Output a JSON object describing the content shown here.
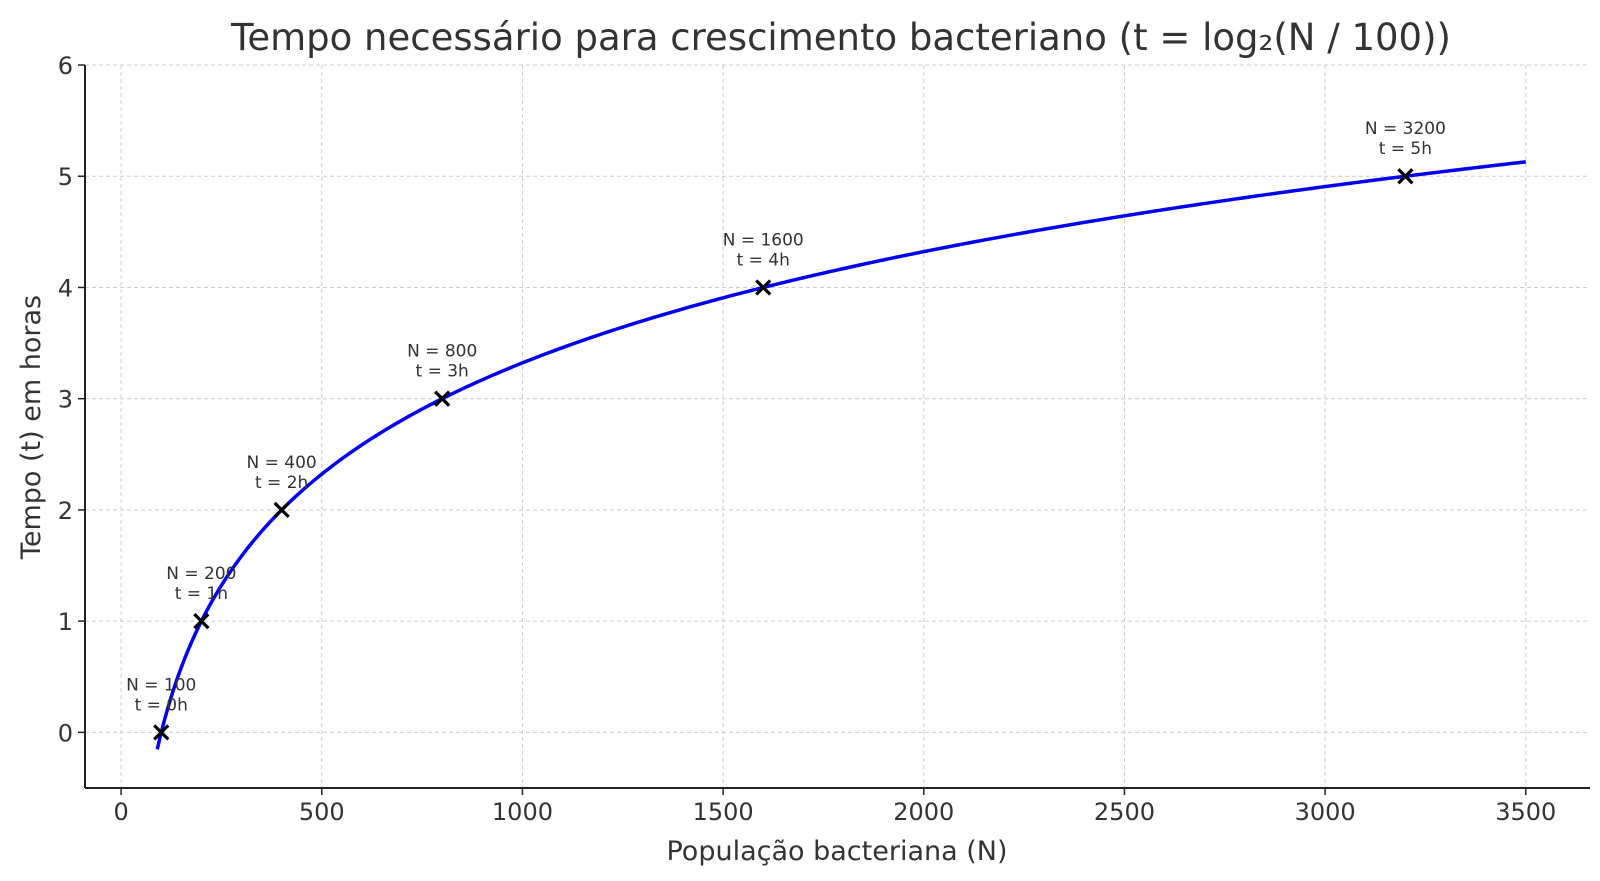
{
  "chart_data": {
    "type": "line",
    "title": "Tempo necessário para crescimento bacteriano (t = log₂(N / 100))",
    "xlabel": "População bacteriana (N)",
    "ylabel": "Tempo (t) em horas",
    "xlim": [
      -90,
      3660
    ],
    "ylim": [
      -0.5,
      6
    ],
    "xticks": [
      0,
      500,
      1000,
      1500,
      2000,
      2500,
      3000,
      3500
    ],
    "yticks": [
      0,
      1,
      2,
      3,
      4,
      5,
      6
    ],
    "grid": true,
    "curve": {
      "formula": "t = log2(N / 100)",
      "x_range": [
        90,
        3500
      ],
      "color": "#0000ee"
    },
    "points": [
      {
        "x": 100,
        "y": 0,
        "label_n": "N = 100",
        "label_t": "t = 0h"
      },
      {
        "x": 200,
        "y": 1,
        "label_n": "N = 200",
        "label_t": "t = 1h"
      },
      {
        "x": 400,
        "y": 2,
        "label_n": "N = 400",
        "label_t": "t = 2h"
      },
      {
        "x": 800,
        "y": 3,
        "label_n": "N = 800",
        "label_t": "t = 3h"
      },
      {
        "x": 1600,
        "y": 4,
        "label_n": "N = 1600",
        "label_t": "t = 4h"
      },
      {
        "x": 3200,
        "y": 5,
        "label_n": "N = 3200",
        "label_t": "t = 5h"
      }
    ],
    "marker_color": "#000000"
  }
}
